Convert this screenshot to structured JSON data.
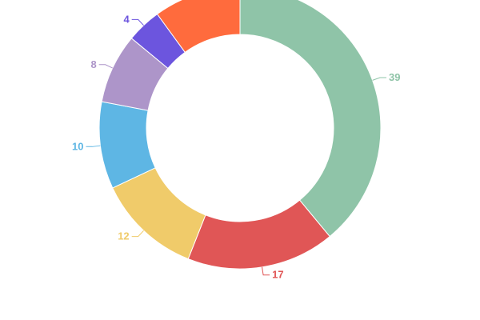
{
  "chart_data": {
    "type": "pie",
    "title": "",
    "slices": [
      {
        "value": 39,
        "label": "39",
        "color": "#8fc4a8"
      },
      {
        "value": 17,
        "label": "17",
        "color": "#e05656"
      },
      {
        "value": 12,
        "label": "12",
        "color": "#f0cb6a"
      },
      {
        "value": 10,
        "label": "10",
        "color": "#5eb6e4"
      },
      {
        "value": 8,
        "label": "8",
        "color": "#ad95c9"
      },
      {
        "value": 4,
        "label": "4",
        "color": "#6c55de"
      },
      {
        "value": 10,
        "label": "",
        "color": "#ff6b3d"
      }
    ],
    "legend": "none"
  }
}
